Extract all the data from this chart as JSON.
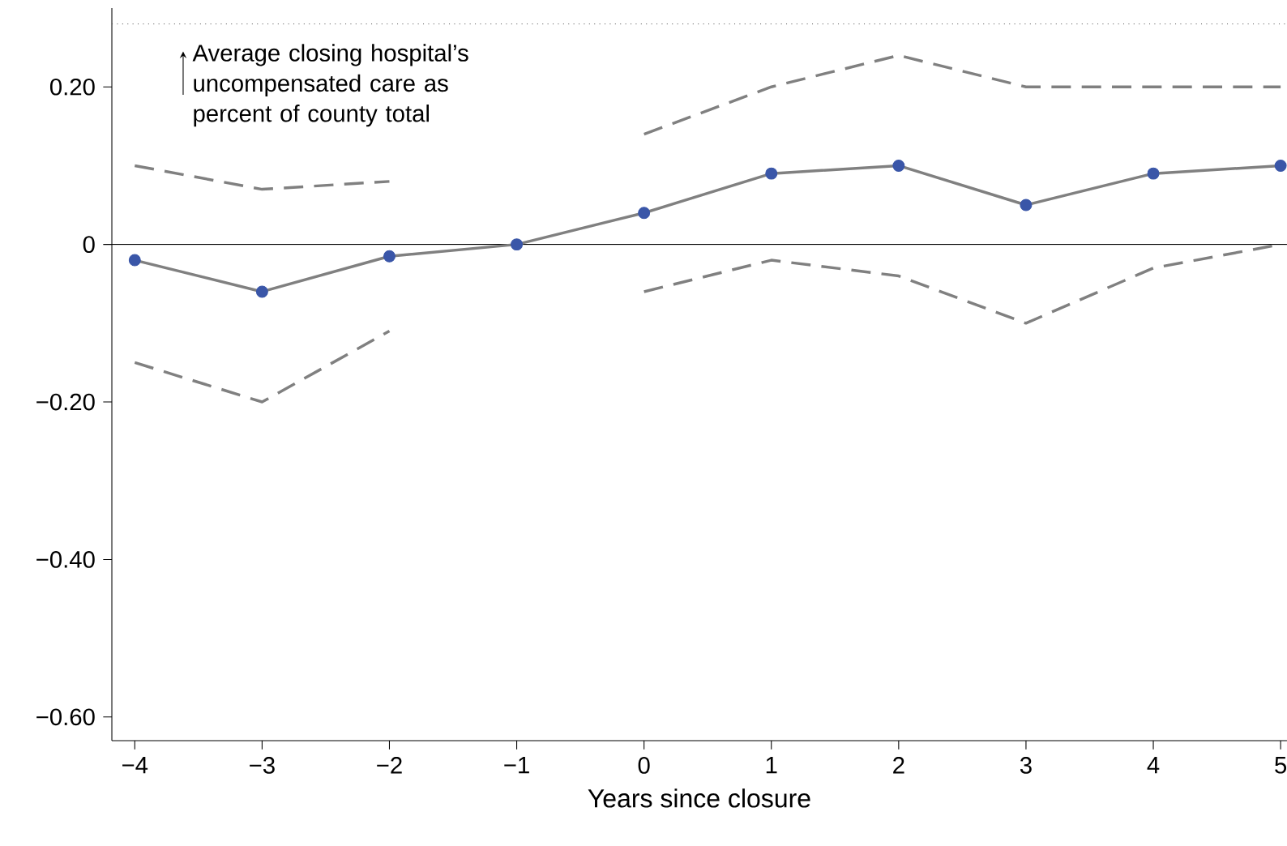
{
  "chart_data": {
    "type": "line",
    "xlabel": "Years since closure",
    "x": [
      -4,
      -3,
      -2,
      -1,
      0,
      1,
      2,
      3,
      4,
      5
    ],
    "series": [
      {
        "color": "#808080",
        "colors": [
          "#3a56a8",
          "#3a56a8",
          "#3a56a8",
          "#3a56a8",
          "#3a56a8",
          "#3a56a8",
          "#3a56a8",
          "#3a56a8",
          "#3a56a8",
          "#3a56a8"
        ],
        "values": [
          -0.02,
          -0.06,
          -0.015,
          0,
          0.04,
          0.09,
          0.1,
          0.05,
          0.09,
          0.1
        ]
      },
      {
        "color": "#808080",
        "line_style": "dashed",
        "marker": "none",
        "values": [
          0.1,
          0.07,
          0.08,
          null,
          0.14,
          0.2,
          0.24,
          0.2,
          0.2,
          0.2
        ]
      },
      {
        "color": "#808080",
        "line_style": "dashed",
        "marker": "none",
        "values": [
          -0.15,
          -0.2,
          -0.11,
          null,
          -0.06,
          -0.02,
          -0.04,
          -0.1,
          -0.03,
          0
        ]
      }
    ],
    "marker": "circle",
    "xlim": [
      -4.18,
      5.05
    ],
    "ylim": [
      -0.63,
      0.3
    ],
    "xticks": [
      {
        "value": -4,
        "label": "−4"
      },
      {
        "value": -3,
        "label": "−3"
      },
      {
        "value": -2,
        "label": "−2"
      },
      {
        "value": -1,
        "label": "−1"
      },
      0,
      1,
      2,
      3,
      4,
      5
    ],
    "yticks": [
      {
        "value": -0.6,
        "label": "−0.60"
      },
      {
        "value": -0.4,
        "label": "−0.40"
      },
      {
        "value": -0.2,
        "label": "−0.20"
      },
      0,
      {
        "value": 0.2,
        "label": "0.20"
      }
    ],
    "ref_lines": [
      {
        "axis": "y",
        "value": 0,
        "color": "#000000",
        "line_style": "solid"
      },
      {
        "axis": "y",
        "value": 0.28,
        "color": "#555555",
        "line_style": "dotted",
        "label": "Average closing hospital’s uncompensated care as percent of county total"
      }
    ],
    "grid": false
  }
}
